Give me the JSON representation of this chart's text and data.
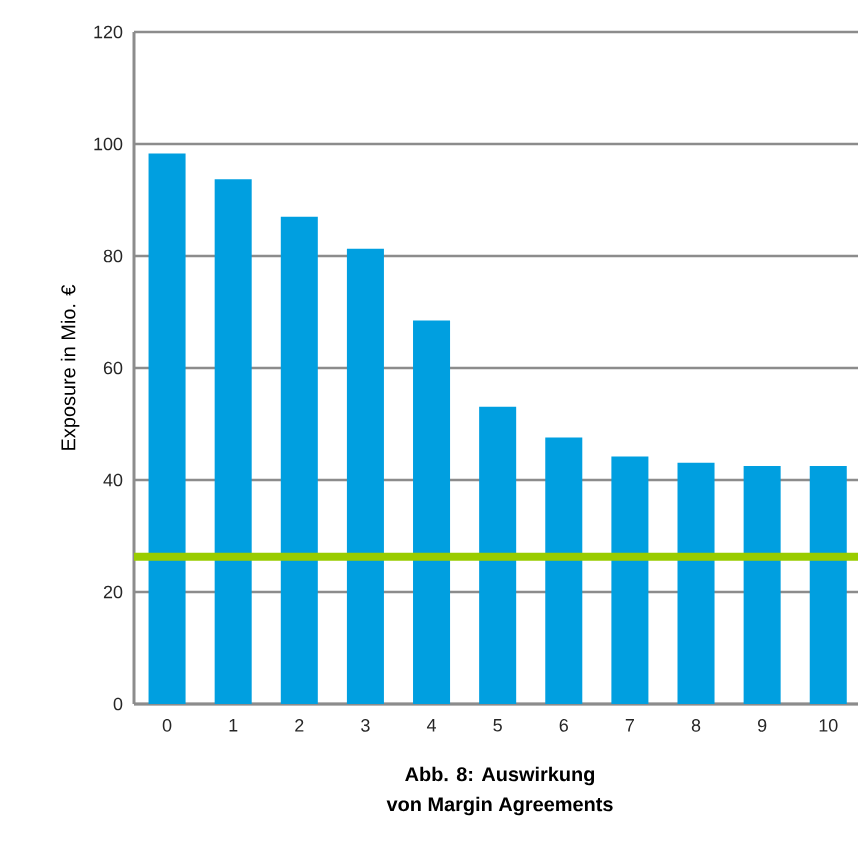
{
  "chart_data": {
    "type": "bar",
    "ylabel": "Exposure in Mio. €",
    "categories": [
      "0",
      "1",
      "2",
      "3",
      "4",
      "5",
      "6",
      "7",
      "8",
      "9",
      "10"
    ],
    "values": [
      98.3,
      93.7,
      87.0,
      81.3,
      68.5,
      53.1,
      47.6,
      44.2,
      43.1,
      42.5,
      42.5
    ],
    "color": "#009fe0",
    "ylim": [
      0,
      120
    ],
    "yticks": [
      0,
      20,
      40,
      60,
      80,
      100,
      120
    ],
    "grid": "y",
    "ref_lines": [
      {
        "axis": "y",
        "value": 26.3,
        "label": null,
        "color": "#99cc00"
      }
    ],
    "annotations": [
      "**Abb. 8: Auswirkung**",
      "**von Margin Agreements**"
    ]
  }
}
